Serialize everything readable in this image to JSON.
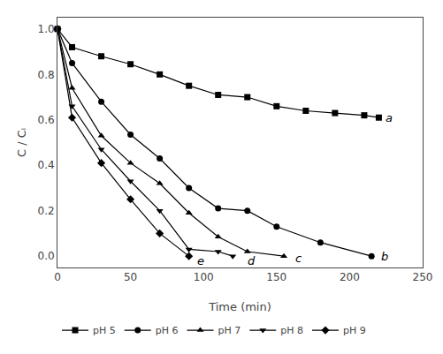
{
  "chart_data": {
    "type": "line",
    "xlabel": "Time (min)",
    "ylabel": "C / Cᵢ",
    "xlim": [
      0,
      250
    ],
    "ylim": [
      -0.05,
      1.05
    ],
    "xticks": [
      0,
      50,
      100,
      150,
      200,
      250
    ],
    "yticks": [
      {
        "value": 0,
        "label": "0.0"
      },
      0.2,
      0.4,
      0.6,
      0.8,
      {
        "value": 1,
        "label": "1.0"
      }
    ],
    "grid": false,
    "legend": "lower left",
    "series": [
      {
        "name": "pH 5",
        "marker": "square",
        "color": "#000000",
        "x": [
          0,
          10,
          30,
          50,
          70,
          90,
          110,
          130,
          150,
          170,
          190,
          210,
          220
        ],
        "values": [
          1.0,
          0.92,
          0.88,
          0.845,
          0.8,
          0.75,
          0.71,
          0.7,
          0.66,
          0.64,
          0.63,
          0.62,
          0.61
        ]
      },
      {
        "name": "pH 6",
        "marker": "circle",
        "color": "#000000",
        "x": [
          0,
          10,
          30,
          50,
          70,
          90,
          110,
          130,
          150,
          180,
          215
        ],
        "values": [
          1.0,
          0.85,
          0.68,
          0.535,
          0.43,
          0.3,
          0.21,
          0.2,
          0.13,
          0.06,
          0.0
        ]
      },
      {
        "name": "pH 7",
        "marker": "triangle-up",
        "color": "#000000",
        "x": [
          0,
          10,
          30,
          50,
          70,
          90,
          110,
          130,
          155
        ],
        "values": [
          1.0,
          0.74,
          0.53,
          0.41,
          0.32,
          0.19,
          0.085,
          0.02,
          0.0
        ]
      },
      {
        "name": "pH 8",
        "marker": "triangle-down",
        "color": "#000000",
        "x": [
          0,
          10,
          30,
          50,
          70,
          90,
          110,
          120
        ],
        "values": [
          1.0,
          0.66,
          0.47,
          0.33,
          0.2,
          0.03,
          0.02,
          0.0
        ]
      },
      {
        "name": "pH 9",
        "marker": "diamond",
        "color": "#000000",
        "x": [
          0,
          10,
          30,
          50,
          70,
          90
        ],
        "values": [
          1.0,
          0.61,
          0.41,
          0.25,
          0.1,
          0.0
        ]
      }
    ],
    "annotations": [
      {
        "text": "a",
        "x": 220,
        "y": 0.61
      },
      {
        "text": "b",
        "x": 217,
        "y": 0.0
      },
      {
        "text": "c",
        "x": 158,
        "y": -0.01
      },
      {
        "text": "d",
        "x": 125,
        "y": -0.02
      },
      {
        "text": "e",
        "x": 91,
        "y": -0.02
      }
    ]
  }
}
